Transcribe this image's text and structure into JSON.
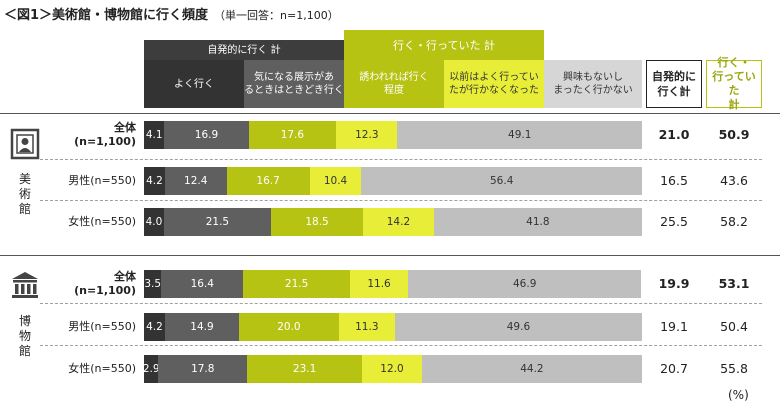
{
  "title": "＜図1＞美術館・博物館に行く頻度",
  "subtitle": "（単一回答：n=1,100）",
  "colors": {
    "yoku": "#333333",
    "kininaru": "#5f5f5f",
    "sasoware": "#b7c313",
    "izen": "#e8ee38",
    "kyoumi": "#bfbfbf",
    "group_left_header": "#3d3d3d",
    "group_right_header": "#b7c313"
  },
  "header": {
    "group_left": "自発的に行く 計",
    "group_right": "行く・行っていた 計",
    "cat": [
      [
        "よく行く"
      ],
      [
        "気になる展示があ",
        "るときはときどき行く"
      ],
      [
        "誘われれば行く",
        "程度"
      ],
      [
        "以前はよく行ってい",
        "たが行かなくなった"
      ],
      [
        "興味もないし",
        "まったく行かない"
      ]
    ],
    "total1": [
      "自発的に",
      "行く計"
    ],
    "total2": [
      "行く・",
      "行っていた",
      "計"
    ]
  },
  "groups": [
    {
      "name": [
        "美",
        "術",
        "館"
      ]
    },
    {
      "name": [
        "博",
        "物",
        "館"
      ]
    }
  ],
  "unit": "(%)",
  "chart_data": {
    "type": "bar",
    "stacked": true,
    "orientation": "horizontal",
    "title": "＜図1＞美術館・博物館に行く頻度",
    "subtitle": "（単一回答：n=1,100）",
    "series": [
      {
        "name": "よく行く",
        "color": "#333333"
      },
      {
        "name": "気になる展示があるときはときどき行く",
        "color": "#5f5f5f"
      },
      {
        "name": "誘われれば行く程度",
        "color": "#b7c313"
      },
      {
        "name": "以前はよく行っていたが行かなくなった",
        "color": "#e8ee38"
      },
      {
        "name": "興味もないしまったく行かない",
        "color": "#bfbfbf"
      }
    ],
    "rows": [
      {
        "group": "美術館",
        "label": [
          "全体",
          "(n=1,100)"
        ],
        "bold": true,
        "values": [
          4.1,
          16.9,
          17.6,
          12.3,
          49.1
        ],
        "total1": "21.0",
        "total2": "50.9"
      },
      {
        "group": "美術館",
        "label": [
          "男性(n=550)"
        ],
        "bold": false,
        "values": [
          4.2,
          12.4,
          16.7,
          10.4,
          56.4
        ],
        "total1": "16.5",
        "total2": "43.6"
      },
      {
        "group": "美術館",
        "label": [
          "女性(n=550)"
        ],
        "bold": false,
        "values": [
          4.0,
          21.5,
          18.5,
          14.2,
          41.8
        ],
        "total1": "25.5",
        "total2": "58.2"
      },
      {
        "group": "博物館",
        "label": [
          "全体",
          "(n=1,100)"
        ],
        "bold": true,
        "values": [
          3.5,
          16.4,
          21.5,
          11.6,
          46.9
        ],
        "total1": "19.9",
        "total2": "53.1"
      },
      {
        "group": "博物館",
        "label": [
          "男性(n=550)"
        ],
        "bold": false,
        "values": [
          4.2,
          14.9,
          20.0,
          11.3,
          49.6
        ],
        "total1": "19.1",
        "total2": "50.4"
      },
      {
        "group": "博物館",
        "label": [
          "女性(n=550)"
        ],
        "bold": false,
        "values": [
          2.9,
          17.8,
          23.1,
          12.0,
          44.2
        ],
        "total1": "20.7",
        "total2": "55.8"
      }
    ],
    "xlim": [
      0,
      100
    ]
  }
}
